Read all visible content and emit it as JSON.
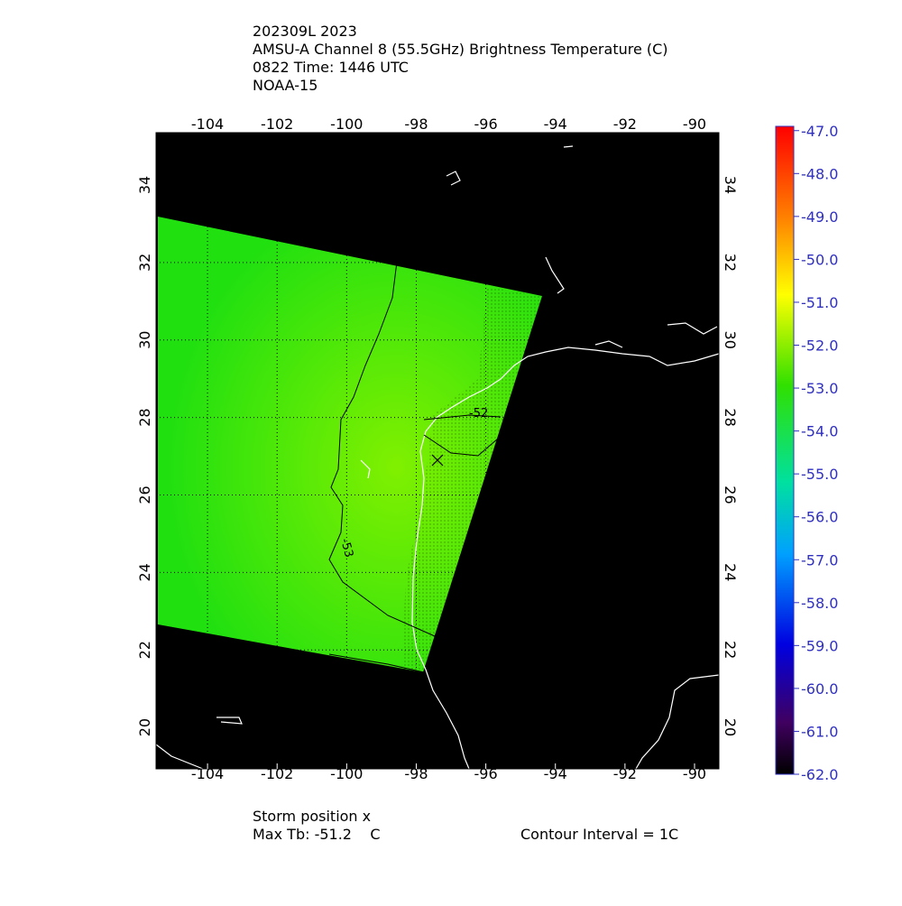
{
  "header": {
    "lines": [
      "202309L 2023",
      "AMSU-A Channel 8 (55.5GHz) Brightness Temperature (C)",
      "0822 Time: 1446 UTC",
      "NOAA-15"
    ]
  },
  "map": {
    "xlim": [
      -105.48,
      -89.3
    ],
    "ylim": [
      18.93,
      35.35
    ],
    "xticks": [
      -104,
      -102,
      -100,
      -98,
      -96,
      -94,
      -92,
      -90
    ],
    "yticks": [
      20,
      22,
      24,
      26,
      28,
      30,
      32,
      34
    ],
    "contour_labels": [
      "-52",
      "-53"
    ]
  },
  "colorbar": {
    "lim": [
      -62,
      -46.9
    ],
    "ticks": [
      {
        "value": -47,
        "label": "-47.0"
      },
      {
        "value": -48,
        "label": "-48.0"
      },
      {
        "value": -49,
        "label": "-49.0"
      },
      {
        "value": -50,
        "label": "-50.0"
      },
      {
        "value": -51,
        "label": "-51.0"
      },
      {
        "value": -52,
        "label": "-52.0"
      },
      {
        "value": -53,
        "label": "-53.0"
      },
      {
        "value": -54,
        "label": "-54.0"
      },
      {
        "value": -55,
        "label": "-55.0"
      },
      {
        "value": -56,
        "label": "-56.0"
      },
      {
        "value": -57,
        "label": "-57.0"
      },
      {
        "value": -58,
        "label": "-58.0"
      },
      {
        "value": -59,
        "label": "-59.0"
      },
      {
        "value": -60,
        "label": "-60.0"
      },
      {
        "value": -61,
        "label": "-61.0"
      },
      {
        "value": -62,
        "label": "-62.0"
      }
    ]
  },
  "footer": {
    "storm": "Storm position x",
    "max_tb": "Max Tb: -51.2    C",
    "contour_interval": "Contour Interval = 1C"
  }
}
